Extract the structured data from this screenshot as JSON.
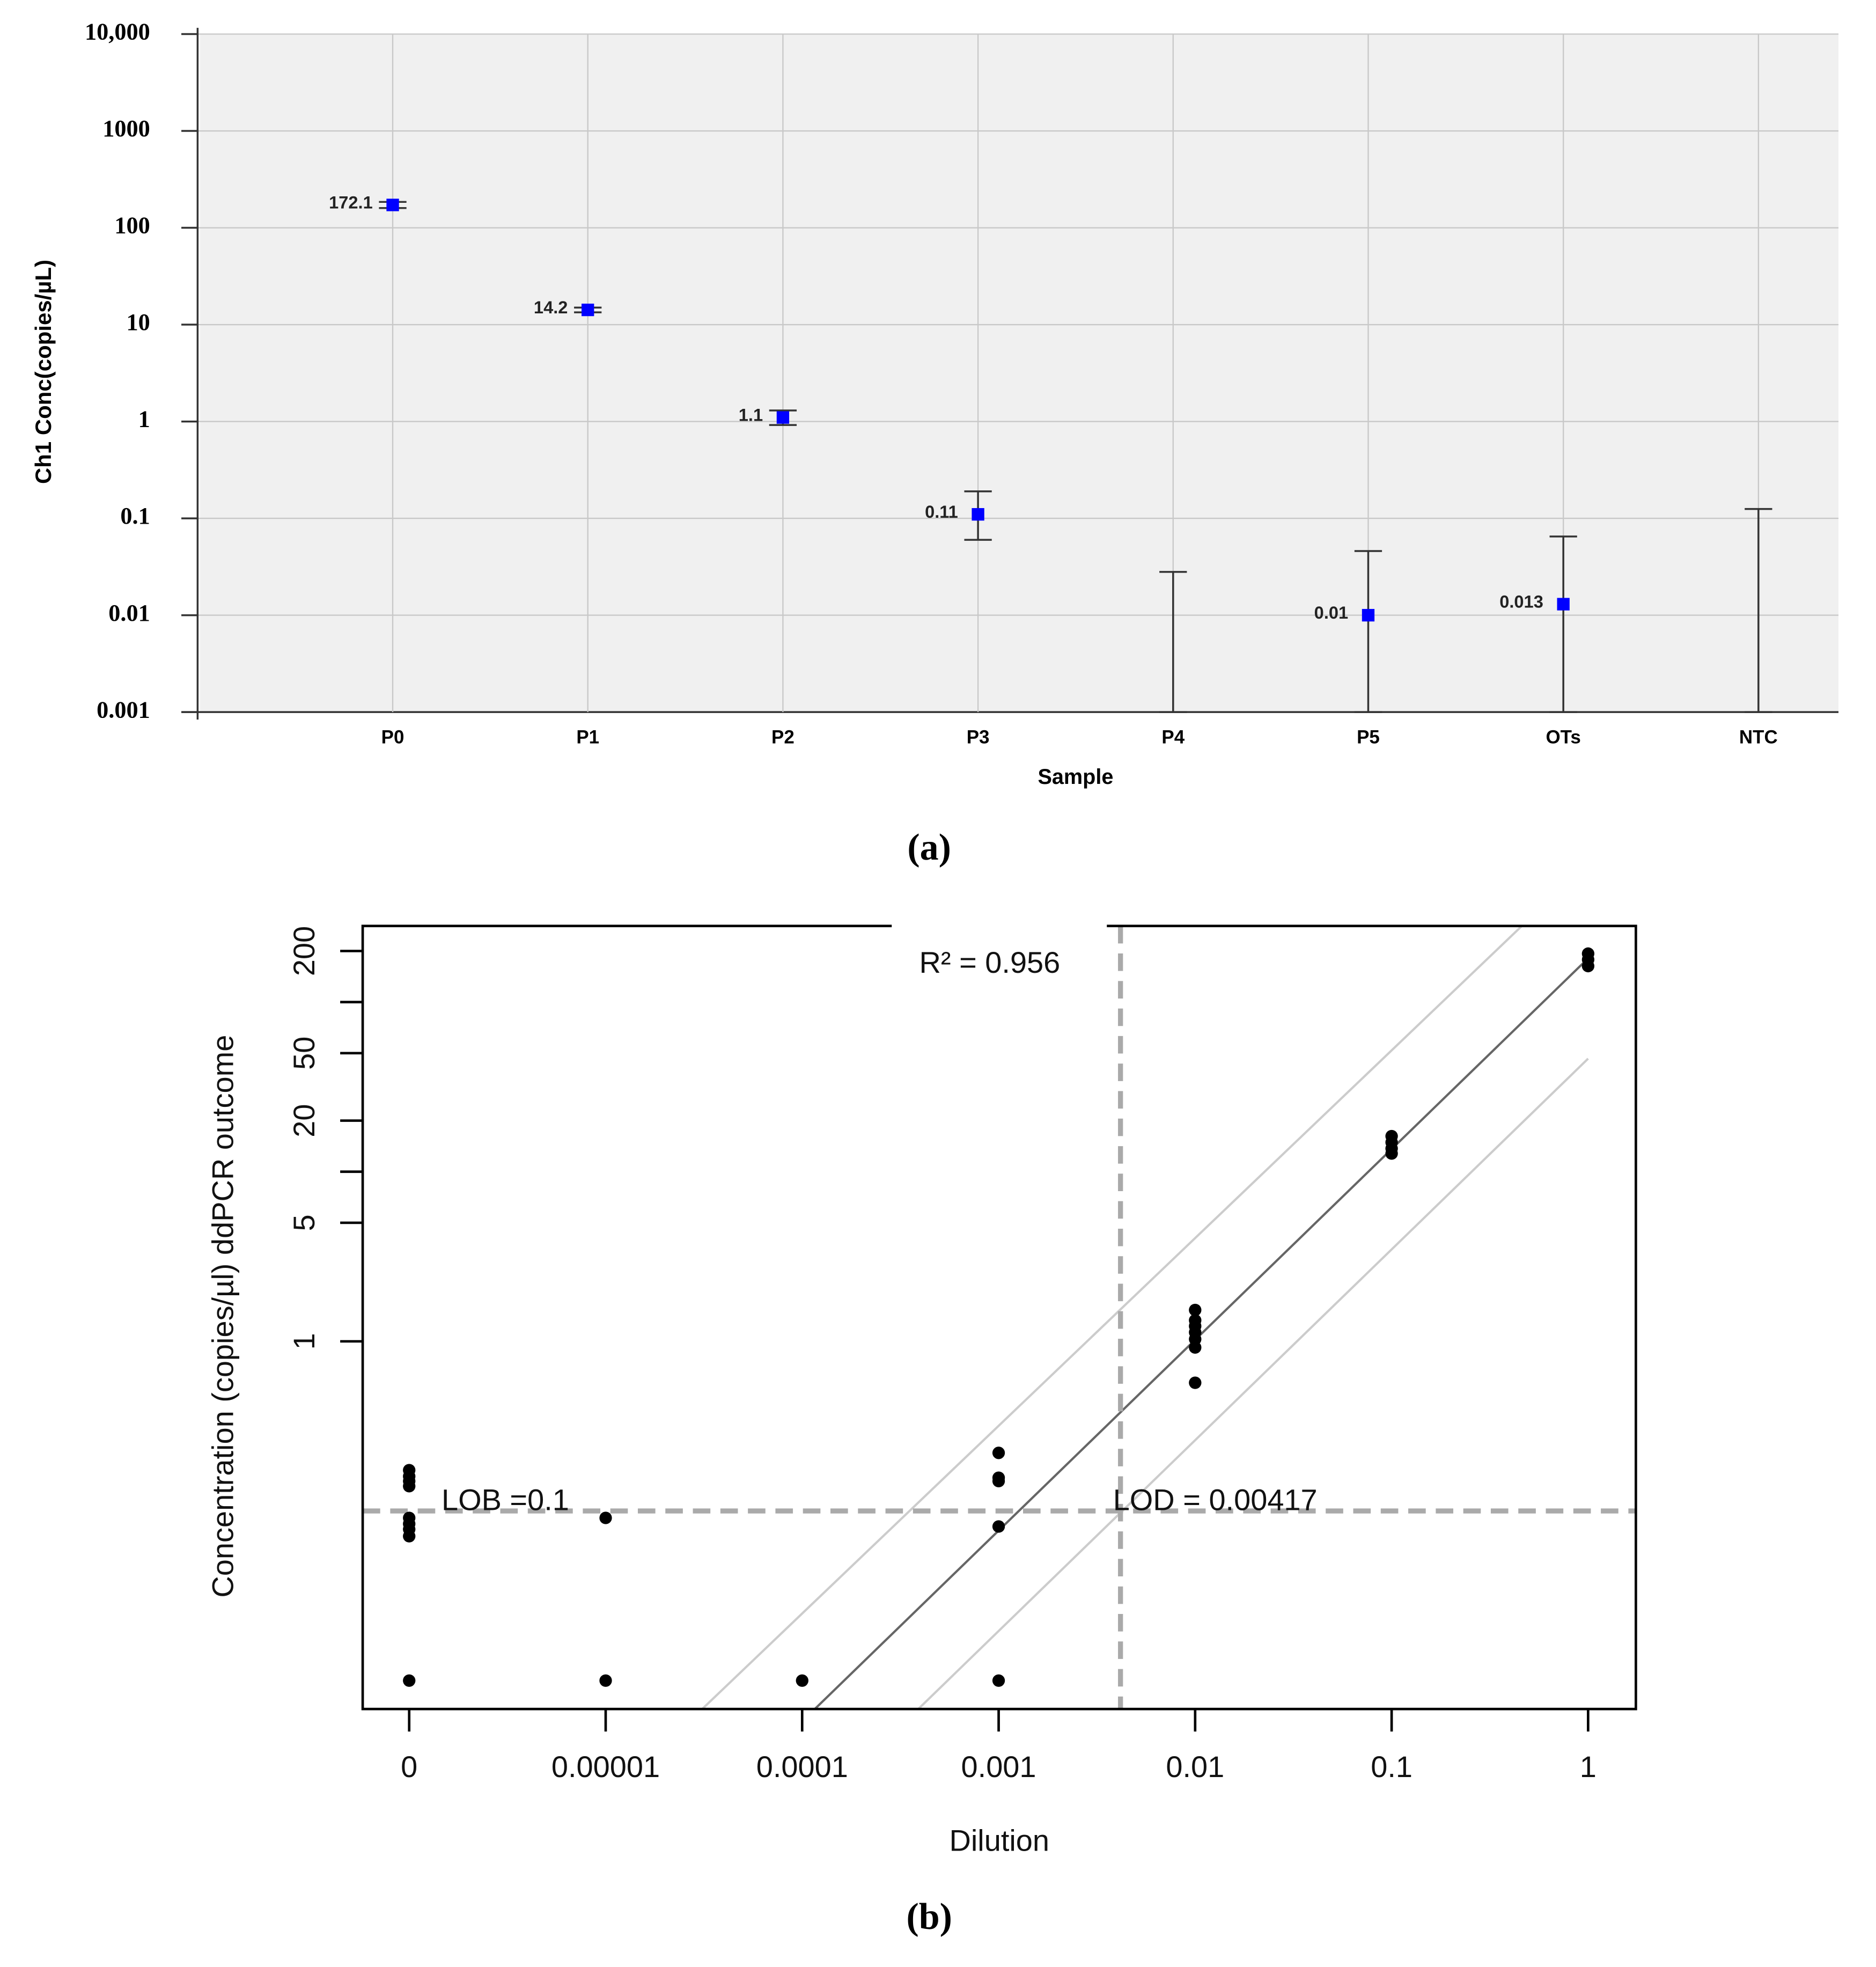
{
  "chart_data": [
    {
      "type": "errorbar",
      "caption": "(a)",
      "xlabel": "Sample",
      "ylabel": "Ch1 Conc(copies/µL)",
      "categories": [
        "P0",
        "P1",
        "P2",
        "P3",
        "P4",
        "P5",
        "OTs",
        "NTC"
      ],
      "values": [
        172.1,
        14.2,
        1.1,
        0.11,
        null,
        0.01,
        0.013,
        null
      ],
      "error_low": [
        160,
        13.4,
        0.92,
        0.06,
        0.001,
        0.001,
        0.001,
        0.001
      ],
      "error_high": [
        185,
        15,
        1.3,
        0.19,
        0.028,
        0.046,
        0.065,
        0.125
      ],
      "color": "#0000ff",
      "error_color": "#333333",
      "log_y": true,
      "ylim": [
        0.001,
        10000
      ],
      "yticks": [
        0.001,
        0.01,
        0.1,
        1,
        10,
        100,
        1000,
        {
          "value": 10000,
          "label": "10,000"
        }
      ],
      "grid": true
    },
    {
      "type": "scatter",
      "caption": "(b)",
      "xlabel": "Dilution",
      "ylabel": "Concentration (copies/µl) ddPCR outcome",
      "annotation": "R² = 0.956",
      "log_x": true,
      "log_y": true,
      "xlim": [
        5.8e-07,
        1.75
      ],
      "xticks": [
        0,
        {
          "value": 1e-05,
          "label": "0.00001"
        },
        0.0001,
        0.001,
        0.01,
        0.1,
        1
      ],
      "ylim": [
        0.0068,
        281
      ],
      "yticks": [
        1,
        5,
        20,
        50,
        200
      ],
      "yminor_ticks": [
        10,
        100
      ],
      "series": [
        {
          "color": "#000000",
          "x": [
            0,
            0,
            0,
            0,
            0,
            0,
            0,
            0,
            0,
            1e-05,
            1e-05,
            0.0001,
            0.001,
            0.001,
            0.001,
            0.001,
            0.001,
            0.01,
            0.01,
            0.01,
            0.01,
            0.01,
            0.01,
            0.01,
            0.1,
            0.1,
            0.1,
            0.1,
            1,
            1,
            1
          ],
          "values": [
            0.174,
            0.16,
            0.15,
            0.14,
            0.091,
            0.084,
            0.071,
            0.078,
            0.01,
            0.091,
            0.01,
            0.01,
            0.22,
            0.157,
            0.15,
            0.081,
            0.01,
            1.53,
            1.33,
            1.23,
            1.13,
            1.03,
            0.92,
            0.57,
            16.2,
            14.9,
            13.7,
            12.8,
            193,
            178,
            163
          ]
        }
      ],
      "lines": [
        {
          "color": "#666666",
          "x": [
            0.000116,
            1
          ],
          "y": [
            0.0068,
            181
          ]
        },
        {
          "color": "#cccccc",
          "x": [
            3.1e-05,
            0.46
          ],
          "y": [
            0.0068,
            281
          ]
        },
        {
          "color": "#cccccc",
          "x": [
            0.00039,
            1
          ],
          "y": [
            0.0068,
            46.4
          ]
        }
      ],
      "hlines": [
        {
          "value": 0.1,
          "label": "LOB =0.1"
        }
      ],
      "vlines": [
        {
          "value": 0.00417,
          "label": "LOD = 0.00417"
        }
      ],
      "ref_color": "#aaaaaa"
    }
  ]
}
